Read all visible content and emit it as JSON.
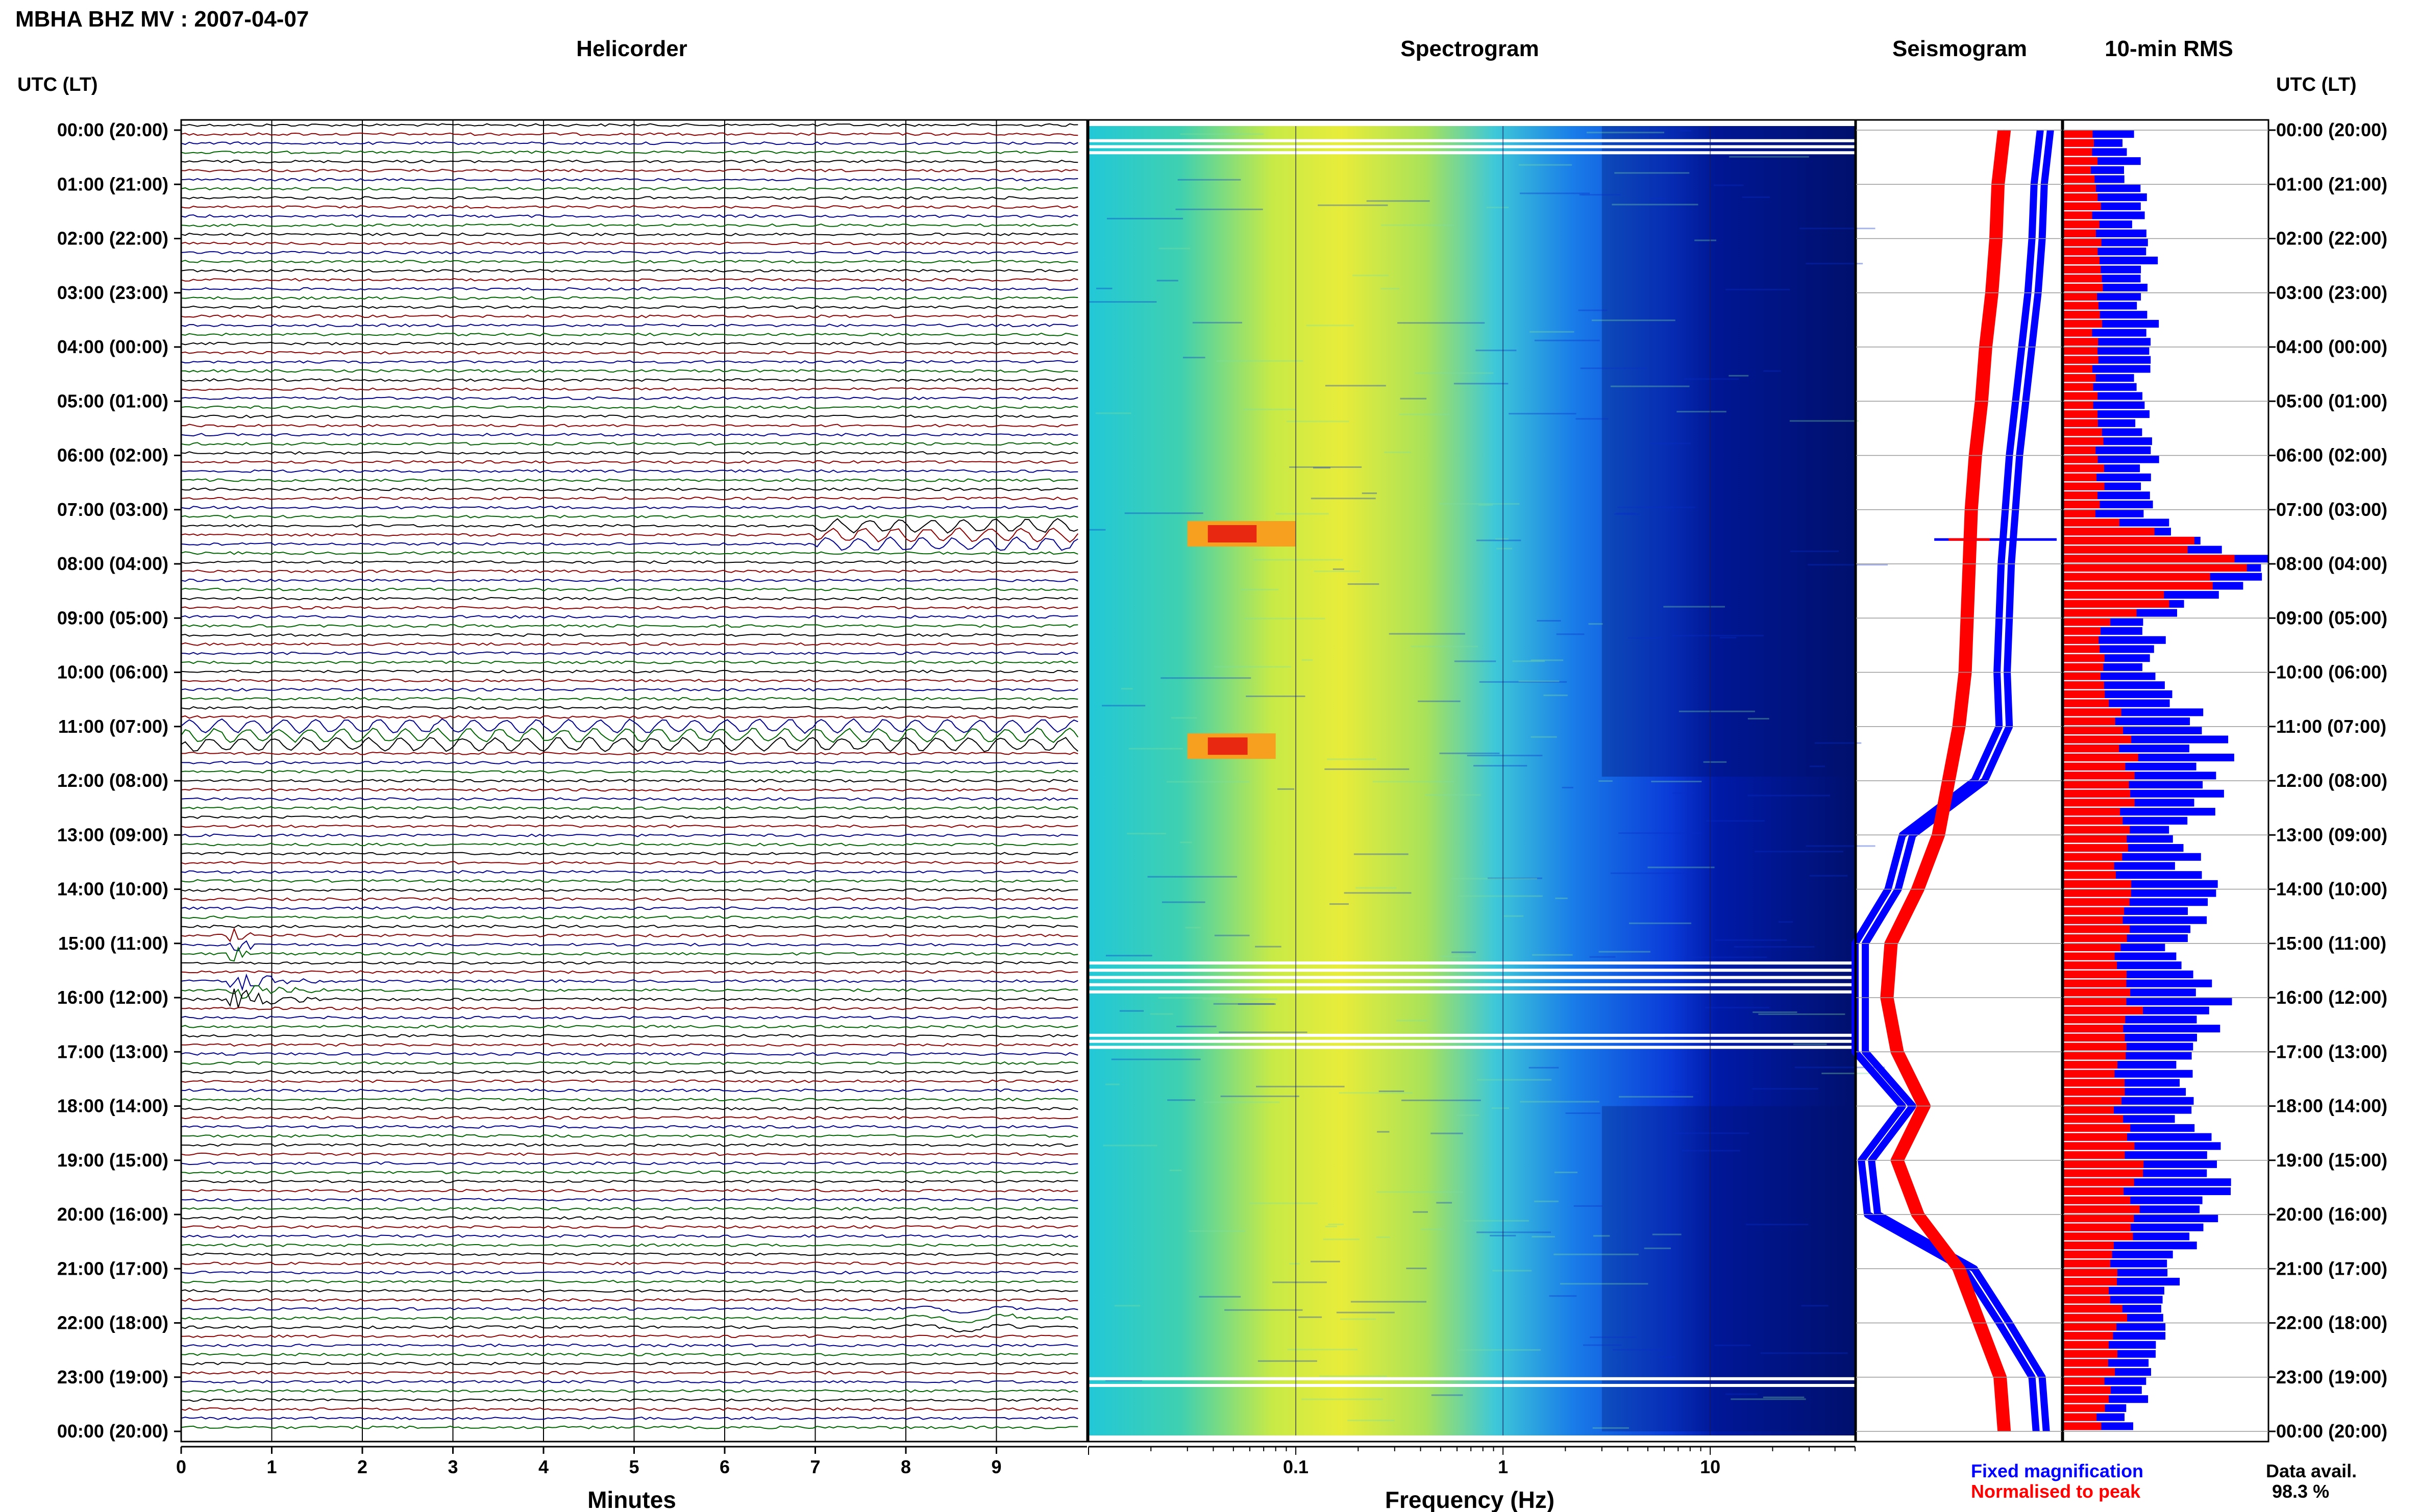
{
  "header": {
    "station_title": "MBHA BHZ MV : 2007-04-07",
    "time_axis_title": "UTC (LT)"
  },
  "panels": {
    "helicorder": "Helicorder",
    "spectrogram": "Spectrogram",
    "seismogram": "Seismogram",
    "rms": "10-min RMS"
  },
  "footer": {
    "minutes_label": "Minutes",
    "frequency_label": "Frequency (Hz)",
    "legend_fixed": "Fixed magnification",
    "legend_normalised": "Normalised to peak",
    "data_avail_label": "Data avail.",
    "data_avail_value": "98.3 %"
  },
  "colors": {
    "fixed": "#0000ff",
    "normalised": "#ff0000",
    "trace_colors": [
      "#000000",
      "#8b0000",
      "#00008b",
      "#006400"
    ]
  },
  "chart_data": {
    "type": "heatmap",
    "time_ticks": [
      "00:00 (20:00)",
      "01:00 (21:00)",
      "02:00 (22:00)",
      "03:00 (23:00)",
      "04:00 (00:00)",
      "05:00 (01:00)",
      "06:00 (02:00)",
      "07:00 (03:00)",
      "08:00 (04:00)",
      "09:00 (05:00)",
      "10:00 (06:00)",
      "11:00 (07:00)",
      "12:00 (08:00)",
      "13:00 (09:00)",
      "14:00 (10:00)",
      "15:00 (11:00)",
      "16:00 (12:00)",
      "17:00 (13:00)",
      "18:00 (14:00)",
      "19:00 (15:00)",
      "20:00 (16:00)",
      "21:00 (17:00)",
      "22:00 (18:00)",
      "23:00 (19:00)",
      "00:00 (20:00)"
    ],
    "helicorder": {
      "xlabel": "Minutes",
      "x_ticks": [
        "0",
        "1",
        "2",
        "3",
        "4",
        "5",
        "6",
        "7",
        "8",
        "9"
      ],
      "xlim": [
        0,
        10
      ],
      "trace_count": 144,
      "events": [
        {
          "time_utc": "07:30",
          "minute_start": 7.0,
          "minute_end": 9.9,
          "type": "long-period oscillation"
        },
        {
          "time_utc": "11:10",
          "minute_start": 0.0,
          "minute_end": 9.9,
          "type": "long-period oscillation"
        },
        {
          "time_utc": "15:00",
          "minute_start": 0.5,
          "minute_end": 0.8,
          "type": "spike"
        },
        {
          "time_utc": "15:50",
          "minute_start": 0.5,
          "minute_end": 1.8,
          "type": "earthquake"
        },
        {
          "time_utc": "21:50",
          "minute_start": 7.0,
          "minute_end": 9.2,
          "type": "transient"
        }
      ]
    },
    "spectrogram": {
      "xlabel": "Frequency (Hz)",
      "scale": "log",
      "xlim": [
        0.01,
        50
      ],
      "x_ticks": [
        "0.1",
        "1",
        "10"
      ],
      "features": [
        {
          "time_utc": "07:25",
          "freq_hz": [
            0.03,
            0.1
          ],
          "level": "high"
        },
        {
          "time_utc": "11:20",
          "freq_hz": [
            0.03,
            0.08
          ],
          "level": "high"
        }
      ],
      "gaps_utc": [
        "00:10-00:30",
        "15:20-16:00",
        "16:40-17:00",
        "23:00-23:15"
      ]
    },
    "seismogram": {
      "series": [
        {
          "name": "Fixed magnification",
          "color": "#0000ff",
          "hourly_position": [
            0.92,
            0.89,
            0.88,
            0.86,
            0.83,
            0.8,
            0.77,
            0.75,
            0.73,
            0.72,
            0.71,
            0.72,
            0.6,
            0.25,
            0.18,
            0.02,
            0.02,
            0.02,
            0.25,
            0.05,
            0.08,
            0.55,
            0.72,
            0.88,
            0.9
          ]
        },
        {
          "name": "Normalised to peak",
          "color": "#ff0000",
          "hourly_position": [
            0.72,
            0.69,
            0.68,
            0.66,
            0.63,
            0.61,
            0.58,
            0.56,
            0.55,
            0.54,
            0.53,
            0.5,
            0.45,
            0.4,
            0.3,
            0.17,
            0.15,
            0.2,
            0.33,
            0.2,
            0.3,
            0.5,
            0.6,
            0.7,
            0.72
          ]
        }
      ]
    },
    "rms": {
      "series": [
        {
          "name": "Fixed magnification",
          "color": "#0000ff",
          "hourly_values": [
            0.3,
            0.36,
            0.4,
            0.42,
            0.4,
            0.38,
            0.42,
            0.4,
            1.0,
            0.45,
            0.45,
            0.7,
            0.75,
            0.55,
            0.7,
            0.55,
            0.75,
            0.6,
            0.55,
            0.75,
            0.7,
            0.5,
            0.5,
            0.4,
            0.3
          ]
        },
        {
          "name": "Normalised to peak",
          "color": "#ff0000",
          "hourly_values": [
            0.15,
            0.15,
            0.18,
            0.17,
            0.16,
            0.16,
            0.18,
            0.18,
            0.95,
            0.2,
            0.2,
            0.3,
            0.35,
            0.28,
            0.3,
            0.28,
            0.35,
            0.3,
            0.28,
            0.35,
            0.32,
            0.25,
            0.28,
            0.22,
            0.15
          ]
        }
      ]
    }
  }
}
